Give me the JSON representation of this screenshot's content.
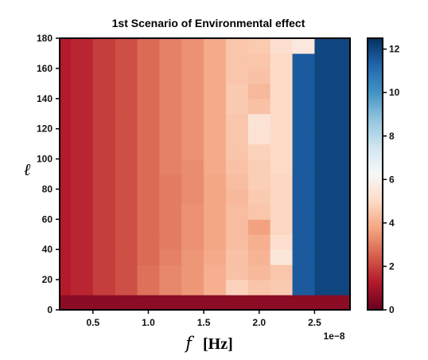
{
  "chart_data": {
    "type": "heatmap",
    "title": "1st Scenario of Environmental effect",
    "xlabel_symbol": "f",
    "xlabel_unit": "[Hz]",
    "ylabel": "ℓ",
    "x_scale_label": "1e−8",
    "xlim": [
      0.2,
      2.82
    ],
    "ylim": [
      0,
      180
    ],
    "x_ticks": [
      0.5,
      1.0,
      1.5,
      2.0,
      2.5
    ],
    "x_tick_labels": [
      "0.5",
      "1.0",
      "1.5",
      "2.0",
      "2.5"
    ],
    "y_ticks": [
      0,
      20,
      40,
      60,
      80,
      100,
      120,
      140,
      160,
      180
    ],
    "y_tick_labels": [
      "0",
      "20",
      "40",
      "60",
      "80",
      "100",
      "120",
      "140",
      "160",
      "180"
    ],
    "x_edges": [
      0.2,
      0.3,
      0.5,
      0.7,
      0.9,
      1.1,
      1.3,
      1.5,
      1.7,
      1.9,
      2.1,
      2.3,
      2.5,
      2.82
    ],
    "y_edges": [
      0,
      10,
      20,
      30,
      40,
      50,
      60,
      70,
      80,
      90,
      100,
      110,
      120,
      130,
      140,
      150,
      160,
      170,
      180
    ],
    "values": [
      [
        0.6,
        0.6,
        0.6,
        0.6,
        0.6,
        0.6,
        0.6,
        0.6,
        0.6,
        0.6,
        0.6,
        0.6,
        0.6
      ],
      [
        1.3,
        1.5,
        1.9,
        2.2,
        2.8,
        3.2,
        3.5,
        4.0,
        4.8,
        4.5,
        4.6,
        11.5,
        12.0
      ],
      [
        1.3,
        1.5,
        1.9,
        2.2,
        2.8,
        3.2,
        3.5,
        4.0,
        4.4,
        4.2,
        4.5,
        11.5,
        12.0
      ],
      [
        1.3,
        1.5,
        1.9,
        2.2,
        2.7,
        3.1,
        3.5,
        3.9,
        4.4,
        4.1,
        5.5,
        11.5,
        12.0
      ],
      [
        1.3,
        1.5,
        1.9,
        2.2,
        2.7,
        3.0,
        3.4,
        3.8,
        4.3,
        4.0,
        5.2,
        11.5,
        12.0
      ],
      [
        1.3,
        1.5,
        1.9,
        2.2,
        2.7,
        3.0,
        3.4,
        3.8,
        4.3,
        3.7,
        4.9,
        11.5,
        12.0
      ],
      [
        1.3,
        1.5,
        1.9,
        2.2,
        2.7,
        3.0,
        3.4,
        3.8,
        4.3,
        4.5,
        4.9,
        11.5,
        12.0
      ],
      [
        1.3,
        1.5,
        1.9,
        2.2,
        2.7,
        3.0,
        3.3,
        3.8,
        4.2,
        4.6,
        4.9,
        11.5,
        12.0
      ],
      [
        1.3,
        1.5,
        1.9,
        2.2,
        2.7,
        3.0,
        3.3,
        3.8,
        4.3,
        4.7,
        4.9,
        11.5,
        12.0
      ],
      [
        1.3,
        1.5,
        1.9,
        2.2,
        2.7,
        3.1,
        3.3,
        3.9,
        4.4,
        4.7,
        5.0,
        11.5,
        12.0
      ],
      [
        1.3,
        1.5,
        1.9,
        2.2,
        2.7,
        3.1,
        3.4,
        3.9,
        4.5,
        4.8,
        5.0,
        11.5,
        12.0
      ],
      [
        1.3,
        1.5,
        1.9,
        2.2,
        2.7,
        3.1,
        3.4,
        3.9,
        4.5,
        5.3,
        5.0,
        11.5,
        12.0
      ],
      [
        1.3,
        1.5,
        1.9,
        2.2,
        2.7,
        3.1,
        3.4,
        3.9,
        4.5,
        5.4,
        5.0,
        11.5,
        12.0
      ],
      [
        1.3,
        1.5,
        1.9,
        2.2,
        2.7,
        3.1,
        3.4,
        3.9,
        4.6,
        4.4,
        5.0,
        11.5,
        12.0
      ],
      [
        1.3,
        1.5,
        1.9,
        2.2,
        2.7,
        3.1,
        3.4,
        3.9,
        4.6,
        4.2,
        5.0,
        11.5,
        12.0
      ],
      [
        1.3,
        1.5,
        1.9,
        2.2,
        2.7,
        3.1,
        3.4,
        3.9,
        4.5,
        4.4,
        5.0,
        11.5,
        12.0
      ],
      [
        1.3,
        1.5,
        1.9,
        2.2,
        2.7,
        3.1,
        3.4,
        3.9,
        4.5,
        4.5,
        5.0,
        11.5,
        12.0
      ],
      [
        1.3,
        1.5,
        1.9,
        2.2,
        2.7,
        3.1,
        3.4,
        3.9,
        4.5,
        4.6,
        5.2,
        5.6,
        12.0
      ]
    ],
    "colormap": "RdBu",
    "vmin": 0,
    "vmax": 12.5,
    "colorbar_ticks": [
      0,
      2,
      4,
      6,
      8,
      10,
      12
    ],
    "colorbar_tick_labels": [
      "0",
      "2",
      "4",
      "6",
      "8",
      "10",
      "12"
    ],
    "grid": false
  }
}
